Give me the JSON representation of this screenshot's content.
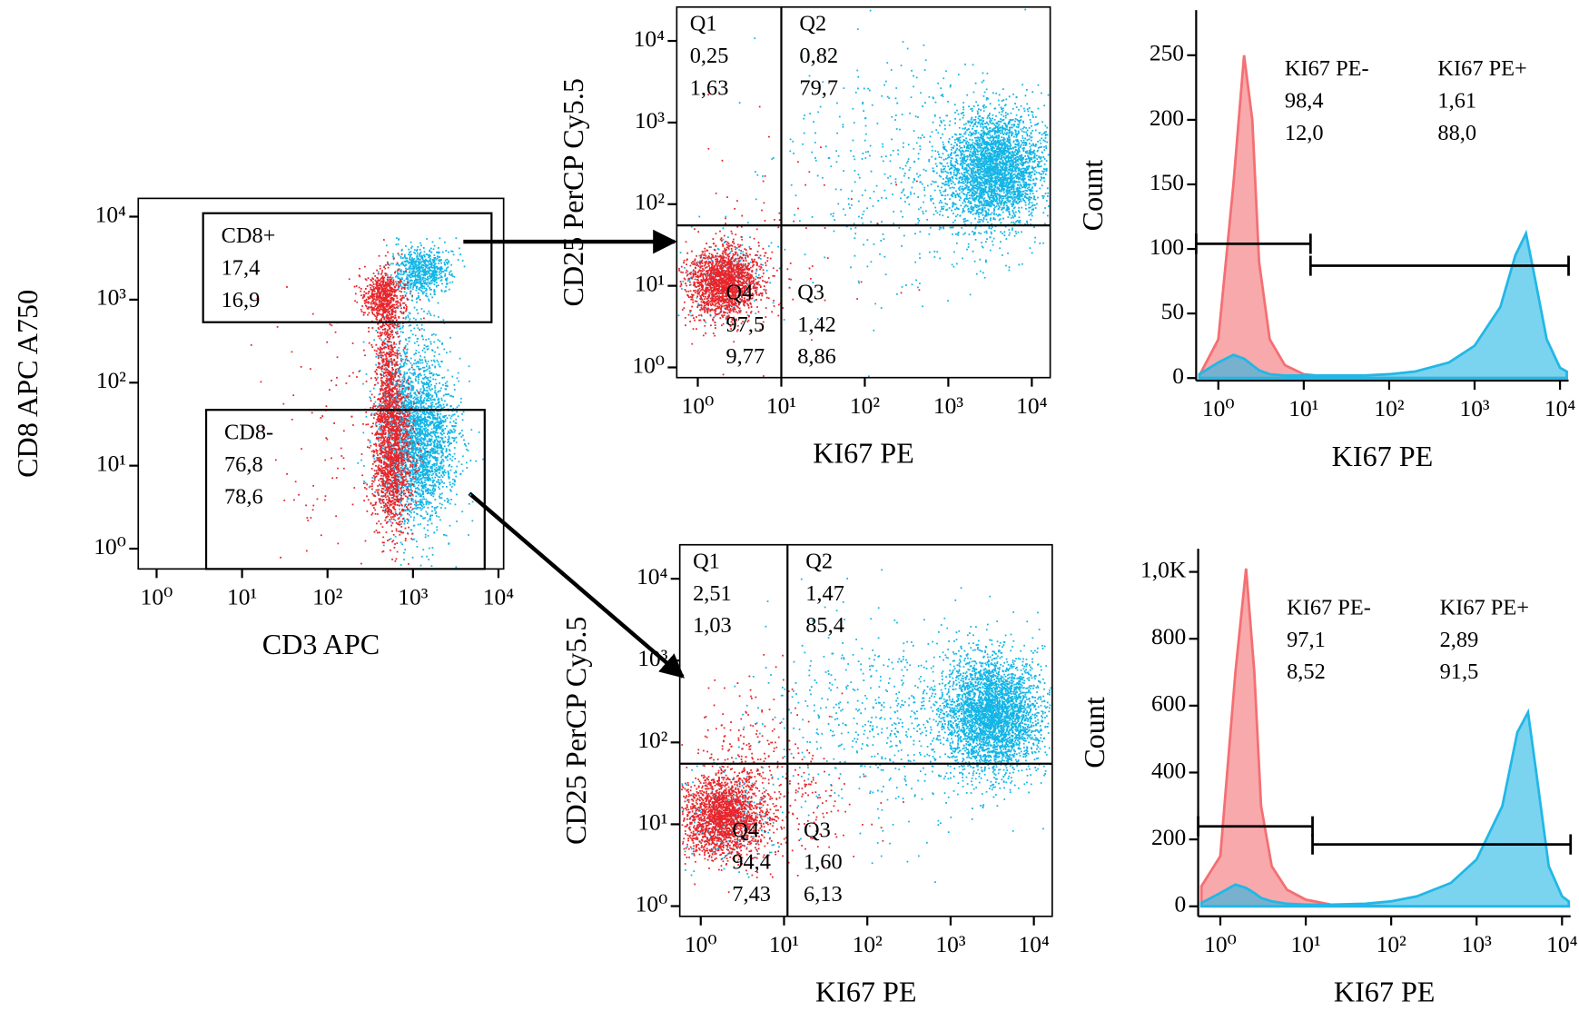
{
  "chart_data": [
    {
      "type": "dotplot",
      "xlabel": "CD3 APC",
      "ylabel": "CD8 APC A750",
      "log": true,
      "xlim": [
        0.61,
        11500
      ],
      "ylim": [
        0.57,
        16600
      ],
      "xticks": [
        {
          "value": 1,
          "label": "10⁰"
        },
        {
          "value": 10,
          "label": "10¹"
        },
        {
          "value": 100,
          "label": "10²"
        },
        {
          "value": 1000,
          "label": "10³"
        },
        {
          "value": 10000,
          "label": "10⁴"
        }
      ],
      "yticks": [
        {
          "value": 1,
          "label": "10⁰"
        },
        {
          "value": 10,
          "label": "10¹"
        },
        {
          "value": 100,
          "label": "10²"
        },
        {
          "value": 1000,
          "label": "10³"
        },
        {
          "value": 10000,
          "label": "10⁴"
        }
      ],
      "gates": [
        {
          "label": "CD8+",
          "x": [
            3.5,
            8300
          ],
          "y": [
            535,
            11000
          ],
          "values": [
            {
              "value": 17.4,
              "label": "17,4",
              "color": "#e8262a"
            },
            {
              "value": 16.9,
              "label": "16,9",
              "color": "#5b8ad0"
            }
          ]
        },
        {
          "label": "CD8-",
          "x": [
            3.8,
            6900
          ],
          "y": [
            0.57,
            47
          ],
          "values": [
            {
              "value": 76.8,
              "label": "76,8",
              "color": "#e8262a"
            },
            {
              "value": 78.6,
              "label": "78,6",
              "color": "#5b8ad0"
            }
          ]
        }
      ]
    },
    {
      "type": "quadrant",
      "xlabel": "KI67 PE",
      "ylabel": "CD25 PerCP Cy5.5",
      "log": true,
      "xlim": [
        0.56,
        16600
      ],
      "ylim": [
        0.75,
        26000
      ],
      "split": [
        10,
        55
      ],
      "xticks": [
        {
          "value": 1,
          "label": "10⁰"
        },
        {
          "value": 10,
          "label": "10¹"
        },
        {
          "value": 100,
          "label": "10²"
        },
        {
          "value": 1000,
          "label": "10³"
        },
        {
          "value": 10000,
          "label": "10⁴"
        }
      ],
      "yticks": [
        {
          "value": 1,
          "label": "10⁰"
        },
        {
          "value": 10,
          "label": "10¹"
        },
        {
          "value": 100,
          "label": "10²"
        },
        {
          "value": 1000,
          "label": "10³"
        },
        {
          "value": 10000,
          "label": "10⁴"
        }
      ],
      "quadrants": [
        {
          "label": "Q1",
          "values": [
            {
              "value": 0.25,
              "label": "0,25",
              "color": "#e8262a"
            },
            {
              "value": 1.63,
              "label": "1,63",
              "color": "#5b8ad0"
            }
          ]
        },
        {
          "label": "Q2",
          "values": [
            {
              "value": 0.82,
              "label": "0,82",
              "color": "#e8262a"
            },
            {
              "value": 79.7,
              "label": "79,7",
              "color": "#5b8ad0"
            }
          ]
        },
        {
          "label": "Q3",
          "values": [
            {
              "value": 1.42,
              "label": "1,42",
              "color": "#e8262a"
            },
            {
              "value": 8.86,
              "label": "8,86",
              "color": "#5b8ad0"
            }
          ]
        },
        {
          "label": "Q4",
          "values": [
            {
              "value": 97.5,
              "label": "97,5",
              "color": "#e8262a"
            },
            {
              "value": 9.77,
              "label": "9,77",
              "color": "#5b8ad0"
            }
          ]
        }
      ]
    },
    {
      "type": "quadrant",
      "xlabel": "KI67 PE",
      "ylabel": "CD25 PerCP Cy5.5",
      "log": true,
      "xlim": [
        0.56,
        16600
      ],
      "ylim": [
        0.75,
        26000
      ],
      "split": [
        11,
        55
      ],
      "xticks": [
        {
          "value": 1,
          "label": "10⁰"
        },
        {
          "value": 10,
          "label": "10¹"
        },
        {
          "value": 100,
          "label": "10²"
        },
        {
          "value": 1000,
          "label": "10³"
        },
        {
          "value": 10000,
          "label": "10⁴"
        }
      ],
      "yticks": [
        {
          "value": 1,
          "label": "10⁰"
        },
        {
          "value": 10,
          "label": "10¹"
        },
        {
          "value": 100,
          "label": "10²"
        },
        {
          "value": 1000,
          "label": "10³"
        },
        {
          "value": 10000,
          "label": "10⁴"
        }
      ],
      "quadrants": [
        {
          "label": "Q1",
          "values": [
            {
              "value": 2.51,
              "label": "2,51",
              "color": "#e8262a"
            },
            {
              "value": 1.03,
              "label": "1,03",
              "color": "#5b8ad0"
            }
          ]
        },
        {
          "label": "Q2",
          "values": [
            {
              "value": 1.47,
              "label": "1,47",
              "color": "#e8262a"
            },
            {
              "value": 85.4,
              "label": "85,4",
              "color": "#5b8ad0"
            }
          ]
        },
        {
          "label": "Q3",
          "values": [
            {
              "value": 1.6,
              "label": "1,60",
              "color": "#e8262a"
            },
            {
              "value": 6.13,
              "label": "6,13",
              "color": "#5b8ad0"
            }
          ]
        },
        {
          "label": "Q4",
          "values": [
            {
              "value": 94.4,
              "label": "94,4",
              "color": "#e8262a"
            },
            {
              "value": 7.43,
              "label": "7,43",
              "color": "#5b8ad0"
            }
          ]
        }
      ]
    },
    {
      "type": "histogram",
      "xlabel": "KI67 PE",
      "ylabel": "Count",
      "log": true,
      "xlim": [
        0.55,
        12600
      ],
      "ylim": [
        -2,
        285
      ],
      "xticks": [
        {
          "value": 1,
          "label": "10⁰"
        },
        {
          "value": 10,
          "label": "10¹"
        },
        {
          "value": 100,
          "label": "10²"
        },
        {
          "value": 1000,
          "label": "10³"
        },
        {
          "value": 10000,
          "label": "10⁴"
        }
      ],
      "yticks": [
        0,
        50,
        100,
        150,
        200,
        250
      ],
      "x": [
        0.6,
        1,
        1.5,
        2,
        2.5,
        3,
        4,
        6,
        10,
        20,
        50,
        100,
        200,
        500,
        1000,
        2000,
        3000,
        4000,
        5000,
        7000,
        10000,
        12000
      ],
      "series": [
        {
          "color": "#f46f73",
          "values": [
            2,
            30,
            150,
            250,
            200,
            90,
            30,
            10,
            3,
            1,
            0,
            0,
            0,
            0,
            0,
            0,
            0,
            0,
            0,
            0,
            0,
            0
          ]
        },
        {
          "color": "#22b7e6",
          "values": [
            3,
            12,
            18,
            15,
            10,
            6,
            3,
            2,
            2,
            2,
            2,
            3,
            5,
            12,
            25,
            55,
            95,
            112,
            80,
            30,
            8,
            5
          ]
        }
      ],
      "gates": [
        {
          "label": "KI67 PE-",
          "x": [
            0.55,
            12
          ],
          "y": 104,
          "values": [
            {
              "value": 98.4,
              "label": "98,4",
              "color": "#e8262a"
            },
            {
              "value": 12,
              "label": "12,0",
              "color": "#5b8ad0"
            }
          ]
        },
        {
          "label": "KI67 PE+",
          "x": [
            12,
            12600
          ],
          "y": 87,
          "values": [
            {
              "value": 1.61,
              "label": "1,61",
              "color": "#e8262a"
            },
            {
              "value": 88,
              "label": "88,0",
              "color": "#5b8ad0"
            }
          ]
        }
      ]
    },
    {
      "type": "histogram",
      "xlabel": "KI67 PE",
      "ylabel": "Count",
      "log": true,
      "xlim": [
        0.55,
        12600
      ],
      "ylim": [
        -30,
        1069
      ],
      "xticks": [
        {
          "value": 1,
          "label": "10⁰"
        },
        {
          "value": 10,
          "label": "10¹"
        },
        {
          "value": 100,
          "label": "10²"
        },
        {
          "value": 1000,
          "label": "10³"
        },
        {
          "value": 10000,
          "label": "10⁴"
        }
      ],
      "yticks": [
        0,
        200,
        400,
        600,
        800,
        {
          "value": 1000,
          "label": "1,0K"
        }
      ],
      "x": [
        0.6,
        1,
        1.5,
        2,
        2.5,
        3,
        4,
        6,
        10,
        20,
        50,
        100,
        200,
        500,
        1000,
        2000,
        3000,
        4000,
        5000,
        7000,
        10000,
        12000
      ],
      "series": [
        {
          "color": "#f46f73",
          "values": [
            60,
            150,
            700,
            1010,
            700,
            300,
            120,
            50,
            20,
            5,
            2,
            0,
            0,
            0,
            0,
            0,
            0,
            0,
            0,
            0,
            0,
            0
          ]
        },
        {
          "color": "#22b7e6",
          "values": [
            10,
            40,
            65,
            55,
            40,
            25,
            15,
            8,
            5,
            5,
            8,
            15,
            30,
            70,
            140,
            300,
            520,
            580,
            400,
            120,
            30,
            15
          ]
        }
      ],
      "gates": [
        {
          "label": "KI67 PE-",
          "x": [
            0.55,
            12
          ],
          "y": 239,
          "values": [
            {
              "value": 97.1,
              "label": "97,1",
              "color": "#e8262a"
            },
            {
              "value": 8.52,
              "label": "8,52",
              "color": "#5b8ad0"
            }
          ]
        },
        {
          "label": "KI67 PE+",
          "x": [
            12,
            12600
          ],
          "y": 185,
          "values": [
            {
              "value": 2.89,
              "label": "2,89",
              "color": "#e8262a"
            },
            {
              "value": 91.5,
              "label": "91,5",
              "color": "#5b8ad0"
            }
          ]
        }
      ]
    }
  ]
}
